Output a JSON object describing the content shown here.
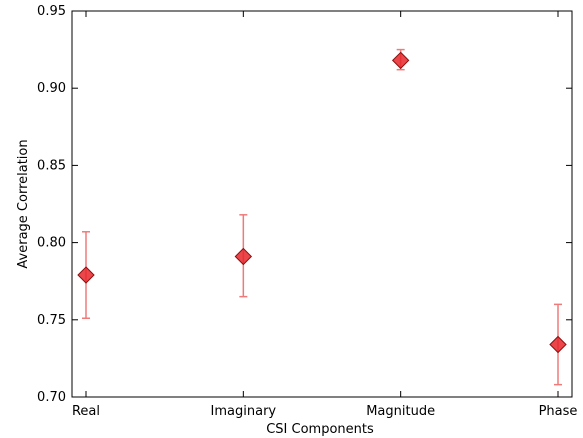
{
  "chart_data": {
    "type": "scatter",
    "xlabel": "CSI Components",
    "ylabel": "Average Correlation",
    "categories": [
      "Real",
      "Imaginary",
      "Magnitude",
      "Phase"
    ],
    "values": [
      0.779,
      0.791,
      0.918,
      0.734
    ],
    "error_low": [
      0.751,
      0.765,
      0.912,
      0.708
    ],
    "error_high": [
      0.807,
      0.818,
      0.925,
      0.76
    ],
    "ylim": [
      0.7,
      0.95
    ],
    "yticks": [
      "0.70",
      "0.75",
      "0.80",
      "0.85",
      "0.90",
      "0.95"
    ],
    "grid": false,
    "marker": "diamond",
    "colors": {
      "marker_fill": "#e8262a",
      "marker_edge": "#8b1010",
      "errorbar": "#f07a7a"
    }
  }
}
